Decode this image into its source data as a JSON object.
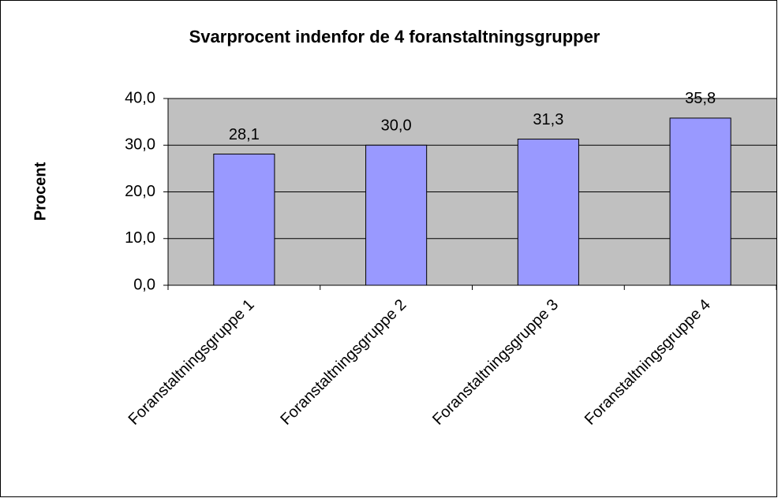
{
  "chart_data": {
    "type": "bar",
    "title": "Svarprocent indenfor de 4 foranstaltningsgrupper",
    "ylabel": "Procent",
    "categories": [
      "Foranstaltningsgruppe 1",
      "Foranstaltningsgruppe 2",
      "Foranstaltningsgruppe 3",
      "Foranstaltningsgruppe 4"
    ],
    "values": [
      28.1,
      30.0,
      31.3,
      35.8
    ],
    "value_labels": [
      "28,1",
      "30,0",
      "31,3",
      "35,8"
    ],
    "color": "#9999ff",
    "ylim": [
      0,
      40
    ],
    "yticks": [
      {
        "value": 0,
        "label": "0,0"
      },
      {
        "value": 10,
        "label": "10,0"
      },
      {
        "value": 20,
        "label": "20,0"
      },
      {
        "value": 30,
        "label": "30,0"
      },
      {
        "value": 40,
        "label": "40,0"
      }
    ],
    "grid": true
  }
}
